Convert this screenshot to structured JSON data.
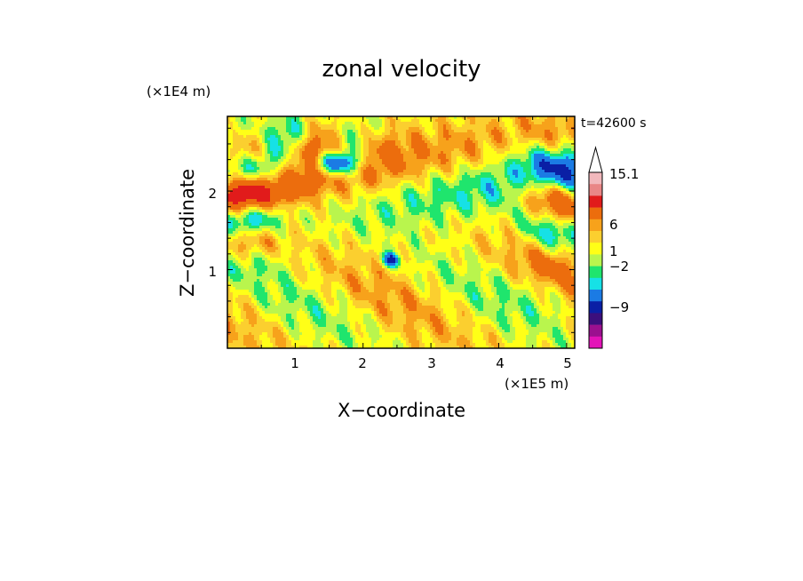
{
  "chart_data": {
    "type": "heatmap",
    "title": "zonal velocity",
    "time_label": "t=42600 s",
    "xlabel": "X−coordinate",
    "ylabel": "Z−coordinate",
    "x_unit": "(×1E5 m)",
    "y_unit": "(×1E4 m)",
    "xlim": [
      0,
      5.12
    ],
    "ylim": [
      0,
      2.95
    ],
    "x_ticks": [
      "1",
      "2",
      "3",
      "4",
      "5"
    ],
    "y_ticks": [
      "1",
      "2"
    ],
    "colorbar": {
      "tick_labels": [
        "15.1",
        "6",
        "1",
        "−2",
        "−9"
      ],
      "levels": [
        {
          "upper": 15.1,
          "color": "#f2b8bc"
        },
        {
          "upper": 12,
          "color": "#e98686"
        },
        {
          "upper": 9,
          "color": "#e11b1b"
        },
        {
          "upper": 6,
          "color": "#ec6d0d"
        },
        {
          "upper": 3,
          "color": "#f7a21b"
        },
        {
          "upper": 2,
          "color": "#fbcf2f"
        },
        {
          "upper": 1,
          "color": "#ffff17"
        },
        {
          "upper": 0,
          "color": "#b9f54d"
        },
        {
          "upper": -1,
          "color": "#1fe56d"
        },
        {
          "upper": -2,
          "color": "#16e1e6"
        },
        {
          "upper": -3,
          "color": "#1b7be4"
        },
        {
          "upper": -5,
          "color": "#0a1fa5"
        },
        {
          "upper": -7,
          "color": "#3b0f7d"
        },
        {
          "upper": -9,
          "color": "#9b108f"
        },
        {
          "upper": -12,
          "color": "#e313b8"
        }
      ]
    }
  }
}
